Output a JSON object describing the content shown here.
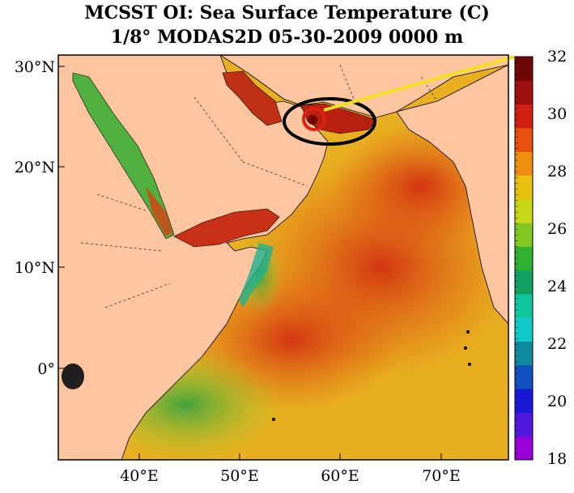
{
  "title": {
    "line1": "MCSST OI:  Sea Surface Temperature (C)",
    "line2": "1/8° MODAS2D 05-30-2009 0000 m"
  },
  "map": {
    "lat_labels": [
      "30°N",
      "20°N",
      "10°N",
      "0°"
    ],
    "lon_labels": [
      "40°E",
      "50°E",
      "60°E",
      "70°E"
    ],
    "land_color": "#fdc6a0",
    "highlight_ellipse_color": "#000000",
    "highlight_circle_color": "#e02010",
    "pointer_line_color": "#f0e020"
  },
  "colorbar": {
    "tick_labels": [
      "32",
      "30",
      "28",
      "26",
      "24",
      "22",
      "20",
      "18"
    ],
    "min": 18,
    "max": 32,
    "unit": "C",
    "colors": [
      "#9a00d8",
      "#5018e0",
      "#1818d8",
      "#1050c0",
      "#108aa0",
      "#10c8c8",
      "#10c8a0",
      "#10a060",
      "#30b030",
      "#80c820",
      "#c8d818",
      "#e8c010",
      "#f09010",
      "#e85010",
      "#d02010",
      "#a01010",
      "#700808"
    ]
  }
}
